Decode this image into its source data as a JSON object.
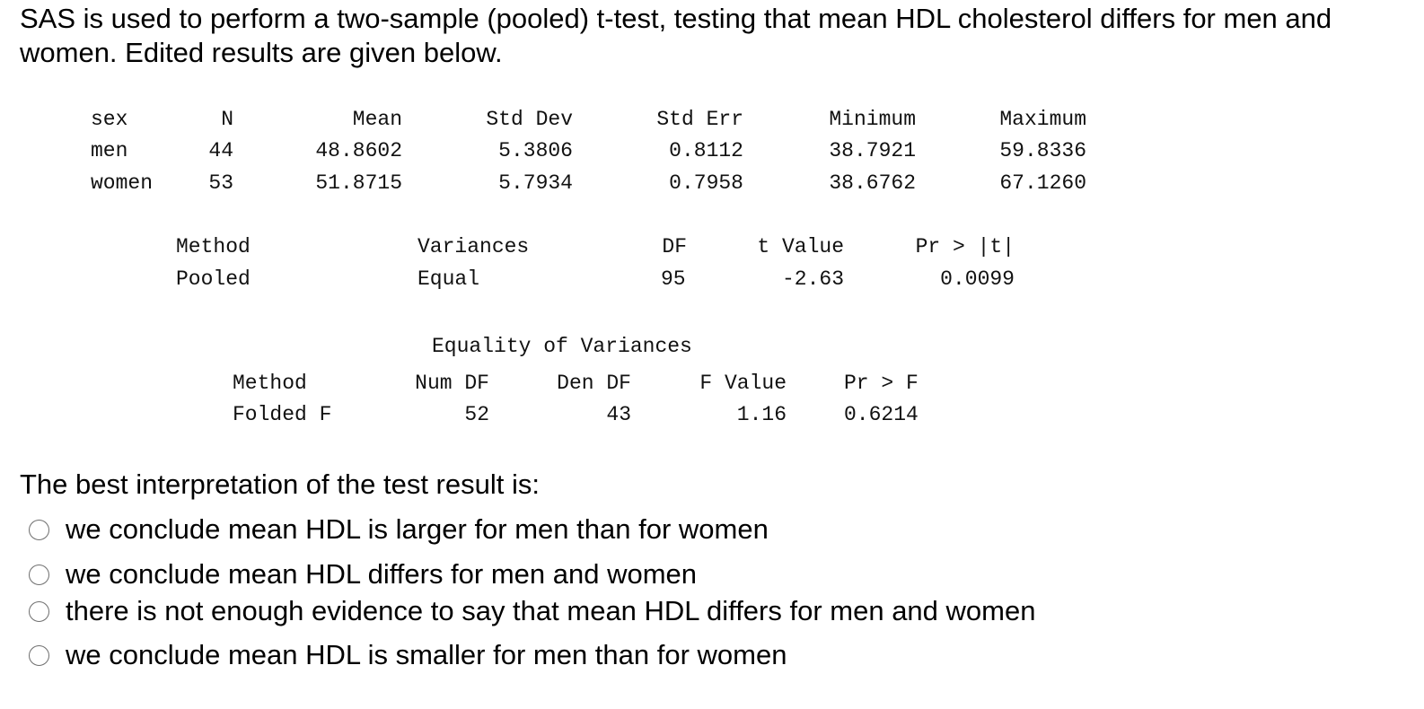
{
  "intro": "SAS is used to perform a two-sample (pooled) t-test, testing that mean HDL cholesterol differs for men and women.  Edited results are given below.",
  "stats_table": {
    "headers": [
      "sex",
      "N",
      "Mean",
      "Std Dev",
      "Std Err",
      "Minimum",
      "Maximum"
    ],
    "rows": [
      [
        "men",
        "44",
        "48.8602",
        "5.3806",
        "0.8112",
        "38.7921",
        "59.8336"
      ],
      [
        "women",
        "53",
        "51.8715",
        "5.7934",
        "0.7958",
        "38.6762",
        "67.1260"
      ]
    ]
  },
  "ttest_table": {
    "headers": [
      "Method",
      "Variances",
      "DF",
      "t Value",
      "Pr > |t|"
    ],
    "row": [
      "Pooled",
      "Equal",
      "95",
      "-2.63",
      "0.0099"
    ]
  },
  "variance_table": {
    "title": "Equality of Variances",
    "headers": [
      "Method",
      "Num DF",
      "Den DF",
      "F Value",
      "Pr > F"
    ],
    "row": [
      "Folded F",
      "52",
      "43",
      "1.16",
      "0.6214"
    ]
  },
  "question": "The best interpretation of the test result is:",
  "options": [
    "we conclude mean HDL is larger for men than for women",
    "we conclude mean HDL differs for men and women",
    "there is not enough evidence to say that mean HDL differs for men and women",
    "we conclude mean HDL is smaller for men than for women"
  ]
}
